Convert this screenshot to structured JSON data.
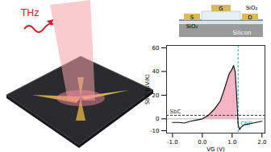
{
  "chart_data": {
    "type": "line",
    "xlabel": "VG (V)",
    "ylabel": "SbG (μV/K)",
    "x": [
      -1.0,
      -0.8,
      -0.6,
      -0.4,
      -0.2,
      0.0,
      0.2,
      0.4,
      0.6,
      0.7,
      0.8,
      0.9,
      1.0,
      1.05,
      1.1,
      1.15,
      1.2,
      1.25,
      1.3,
      1.4,
      1.6,
      1.8,
      2.0
    ],
    "series": [
      {
        "color": "#111111",
        "values": [
          -3,
          -3,
          -3.5,
          -2,
          -1,
          0,
          3,
          8,
          15,
          22,
          30,
          38,
          42,
          45,
          40,
          20,
          -5,
          -9,
          -7,
          -5,
          -4,
          -3,
          -2
        ]
      }
    ],
    "xlim": [
      -1.2,
      2.1
    ],
    "xticks": [
      {
        "value": -1,
        "label": "-1.0"
      },
      {
        "value": 0,
        "label": "0.0"
      },
      {
        "value": 1,
        "label": "1.0"
      },
      {
        "value": 2,
        "label": "2.0"
      }
    ],
    "ylim": [
      -12,
      62
    ],
    "yticks": [
      -10,
      0,
      20,
      40,
      60
    ],
    "reference_lines": [
      {
        "axis": "y",
        "value": 3,
        "label": "SbC",
        "color": "#333333"
      },
      {
        "axis": "x",
        "value": 1.2,
        "label": "CNP",
        "color": "#2aa8b8"
      }
    ]
  },
  "illustration": {
    "beam_label": "THz",
    "schematic_labels": {
      "source": "S",
      "gate": "G",
      "drain": "D",
      "top_oxide": "SiO₂",
      "bottom_oxide": "SiO₂",
      "substrate": "Silicon"
    }
  }
}
